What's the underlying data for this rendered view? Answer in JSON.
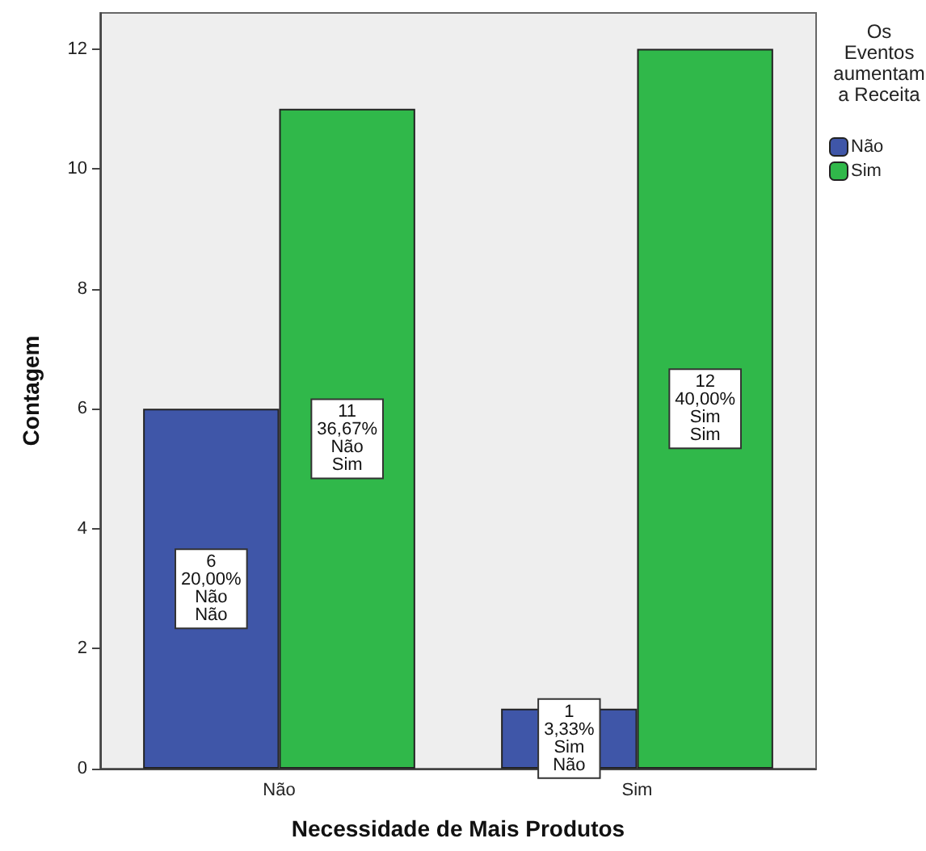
{
  "chart_data": {
    "type": "bar",
    "xlabel": "Necessidade de Mais Produtos",
    "ylabel": "Contagem",
    "legend_title": "Os\nEventos\naumentam\na Receita",
    "categories": [
      "Não",
      "Sim"
    ],
    "series": [
      {
        "name": "Não",
        "color": "#3f56a8",
        "values": [
          6,
          1
        ],
        "value_labels": [
          "6\n20,00%\nNão\nNão",
          "1\n3,33%\nSim\nNão"
        ]
      },
      {
        "name": "Sim",
        "color": "#30b84a",
        "values": [
          11,
          12
        ],
        "value_labels": [
          "11\n36,67%\nNão\nSim",
          "12\n40,00%\nSim\nSim"
        ]
      }
    ],
    "ylim": [
      0,
      12.6
    ],
    "yticks": [
      0,
      2,
      4,
      6,
      8,
      10,
      12
    ],
    "grid": false,
    "legend": "top right"
  }
}
